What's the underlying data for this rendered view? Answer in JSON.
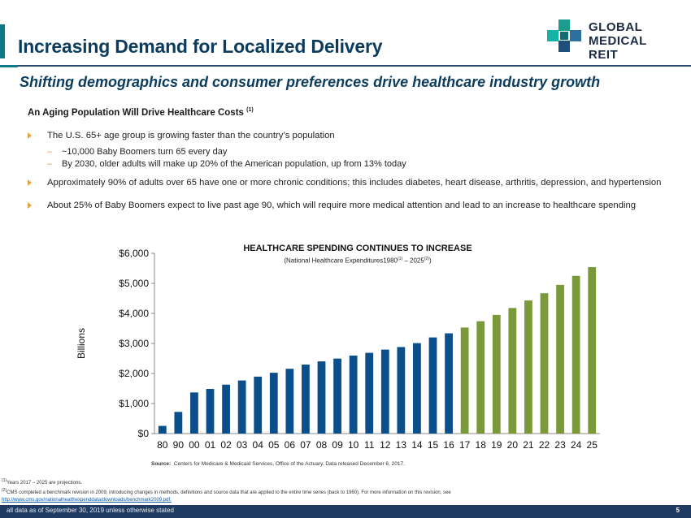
{
  "header": {
    "title": "Increasing Demand for Localized Delivery",
    "subtitle": "Shifting demographics and consumer preferences drive healthcare industry growth",
    "logo_line1": "GLOBAL",
    "logo_line2": "MEDICAL REIT"
  },
  "section": {
    "heading": "An Aging Population Will Drive Healthcare Costs",
    "heading_note": "(1)"
  },
  "bullets": {
    "b1": "The U.S. 65+ age group is growing faster than the country’s population",
    "b1_sub1": "~10,000 Baby Boomers turn 65 every day",
    "b1_sub2": "By 2030, older adults will make up 20% of the American population, up from 13% today",
    "b2": "Approximately 90% of adults over 65 have one or more chronic conditions; this includes diabetes, heart disease, arthritis, depression, and hypertension",
    "b3": "About 25% of Baby Boomers expect to live past age 90, which will require more medical attention and lead to an increase to healthcare spending",
    "sub_marker": "–"
  },
  "chart_header": {
    "title": "HEALTHCARE SPENDING CONTINUES TO INCREASE",
    "subtitle_a": "(National Healthcare Expenditures1980",
    "subtitle_note1": "(1)",
    "subtitle_b": " – 2025",
    "subtitle_note2": "(2)",
    "subtitle_c": ")"
  },
  "chart_data": {
    "type": "bar",
    "title": "HEALTHCARE SPENDING CONTINUES TO INCREASE",
    "ylabel": "Billions",
    "xlabel": "",
    "ylim": [
      0,
      6000
    ],
    "yticks": [
      0,
      1000,
      2000,
      3000,
      4000,
      5000,
      6000
    ],
    "ytick_labels": [
      "$0",
      "$1,000",
      "$2,000",
      "$3,000",
      "$4,000",
      "$5,000",
      "$6,000"
    ],
    "grid": false,
    "categories": [
      "80",
      "90",
      "00",
      "01",
      "02",
      "03",
      "04",
      "05",
      "06",
      "07",
      "08",
      "09",
      "10",
      "11",
      "12",
      "13",
      "14",
      "15",
      "16",
      "17",
      "18",
      "19",
      "20",
      "21",
      "22",
      "23",
      "24",
      "25"
    ],
    "values": [
      255,
      721,
      1369,
      1486,
      1628,
      1767,
      1895,
      2024,
      2157,
      2296,
      2403,
      2496,
      2596,
      2688,
      2795,
      2880,
      3010,
      3200,
      3337,
      3530,
      3740,
      3950,
      4180,
      4430,
      4670,
      4950,
      5250,
      5540
    ],
    "colors": {
      "actual": "#0b4f8a",
      "projected": "#7a9a3a"
    },
    "projected_from_index": 19
  },
  "source": {
    "label": "Source:",
    "text": "Centers for Medicare & Medicaid Services,  Office of the Actuary.  Data released  December  6, 2017."
  },
  "footnotes": {
    "n1_mark": "(1)",
    "n1": "Years 2017 – 2025 are projections.",
    "n2_mark": "(2)",
    "n2": "CMS completed  a benchmark  revision  in 2009, introducing changes in methods,  definitions and source data that are  applied to the entire  time  series (back to 1960). For more information  on this revision, see ",
    "n2_link": "http://www.cms.gov/nationalhealthexpenddata/downloads/benchmark2009.pdf."
  },
  "footer": {
    "text": "all data as of September 30, 2019 unless otherwise stated",
    "page": "5"
  }
}
